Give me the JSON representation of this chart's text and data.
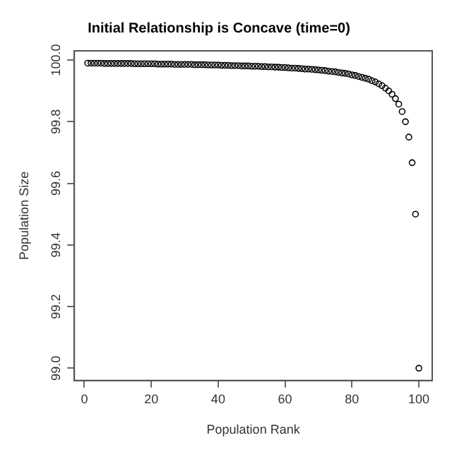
{
  "chart_data": {
    "type": "scatter",
    "title": "Initial Relationship is Concave (time=0)",
    "xlabel": "Population Rank",
    "ylabel": "Population Size",
    "x": [
      1,
      2,
      3,
      4,
      5,
      6,
      7,
      8,
      9,
      10,
      11,
      12,
      13,
      14,
      15,
      16,
      17,
      18,
      19,
      20,
      21,
      22,
      23,
      24,
      25,
      26,
      27,
      28,
      29,
      30,
      31,
      32,
      33,
      34,
      35,
      36,
      37,
      38,
      39,
      40,
      41,
      42,
      43,
      44,
      45,
      46,
      47,
      48,
      49,
      50,
      51,
      52,
      53,
      54,
      55,
      56,
      57,
      58,
      59,
      60,
      61,
      62,
      63,
      64,
      65,
      66,
      67,
      68,
      69,
      70,
      71,
      72,
      73,
      74,
      75,
      76,
      77,
      78,
      79,
      80,
      81,
      82,
      83,
      84,
      85,
      86,
      87,
      88,
      89,
      90,
      91,
      92,
      93,
      94,
      95,
      96,
      97,
      98,
      99,
      100
    ],
    "series": [
      {
        "color": "#000000",
        "values": [
          99.99,
          99.99,
          99.99,
          99.99,
          99.99,
          99.989,
          99.989,
          99.989,
          99.989,
          99.989,
          99.989,
          99.989,
          99.989,
          99.989,
          99.988,
          99.988,
          99.988,
          99.988,
          99.988,
          99.988,
          99.988,
          99.987,
          99.987,
          99.987,
          99.987,
          99.987,
          99.986,
          99.986,
          99.986,
          99.986,
          99.986,
          99.986,
          99.985,
          99.985,
          99.985,
          99.985,
          99.984,
          99.984,
          99.984,
          99.984,
          99.983,
          99.983,
          99.983,
          99.982,
          99.982,
          99.982,
          99.981,
          99.981,
          99.981,
          99.98,
          99.98,
          99.98,
          99.979,
          99.979,
          99.978,
          99.978,
          99.977,
          99.977,
          99.976,
          99.976,
          99.975,
          99.974,
          99.974,
          99.973,
          99.972,
          99.971,
          99.971,
          99.97,
          99.969,
          99.968,
          99.967,
          99.966,
          99.964,
          99.963,
          99.962,
          99.96,
          99.958,
          99.957,
          99.955,
          99.952,
          99.95,
          99.947,
          99.944,
          99.941,
          99.938,
          99.933,
          99.929,
          99.923,
          99.917,
          99.909,
          99.9,
          99.889,
          99.875,
          99.857,
          99.833,
          99.8,
          99.75,
          99.667,
          99.5,
          99.0
        ]
      }
    ],
    "xlim": [
      -3,
      104
    ],
    "ylim": [
      98.96,
      100.03
    ],
    "xticks": [
      0,
      20,
      40,
      60,
      80,
      100
    ],
    "yticks": [
      {
        "value": 99,
        "label": "99.0"
      },
      {
        "value": 99.2,
        "label": "99.2"
      },
      {
        "value": 99.4,
        "label": "99.4"
      },
      {
        "value": 99.6,
        "label": "99.6"
      },
      {
        "value": 99.8,
        "label": "99.8"
      },
      {
        "value": 100,
        "label": "100.0"
      }
    ],
    "grid": false,
    "legend": false,
    "marker": "circle"
  }
}
